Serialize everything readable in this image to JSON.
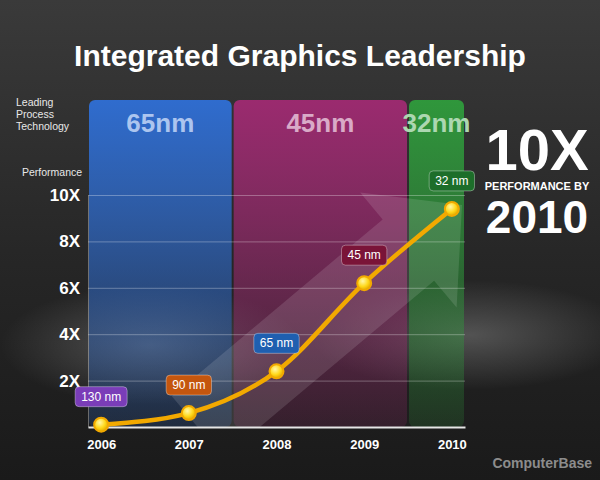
{
  "chart_data": {
    "type": "line",
    "title": "Integrated Graphics Leadership",
    "y_label": "Performance",
    "band_title": "Leading Process Technology",
    "categories": [
      "2006",
      "2007",
      "2008",
      "2009",
      "2010"
    ],
    "values": [
      0.1,
      0.6,
      2.4,
      6.2,
      9.4
    ],
    "color": "#f2a900",
    "marker": "circle",
    "ylim": [
      0,
      10
    ],
    "yticks": [
      {
        "value": 2,
        "label": "2X"
      },
      {
        "value": 4,
        "label": "4X"
      },
      {
        "value": 6,
        "label": "6X"
      },
      {
        "value": 8,
        "label": "8X"
      },
      {
        "value": 10,
        "label": "10X"
      }
    ],
    "grid": true,
    "bands": [
      {
        "label": "65nm",
        "color": "#2f6fd6",
        "from": "2006",
        "to": "2007"
      },
      {
        "label": "45nm",
        "color": "#a02a72",
        "from": "2008",
        "to": "2009"
      },
      {
        "label": "32nm",
        "color": "#2f9c3c",
        "from": "2010",
        "to": "2010"
      }
    ],
    "annotations": [
      {
        "text": "130 nm",
        "x": "2006",
        "color": "#7a3db8"
      },
      {
        "text": "90 nm",
        "x": "2007",
        "color": "#c4560e"
      },
      {
        "text": "65 nm",
        "x": "2008",
        "color": "#1f5fb0"
      },
      {
        "text": "45 nm",
        "x": "2009",
        "color": "#7a1438"
      },
      {
        "text": "32 nm",
        "x": "2010",
        "color": "#1d6e2a"
      }
    ],
    "callout": [
      "10X",
      "PERFORMANCE BY",
      "2010"
    ],
    "watermark": "ComputerBase"
  }
}
